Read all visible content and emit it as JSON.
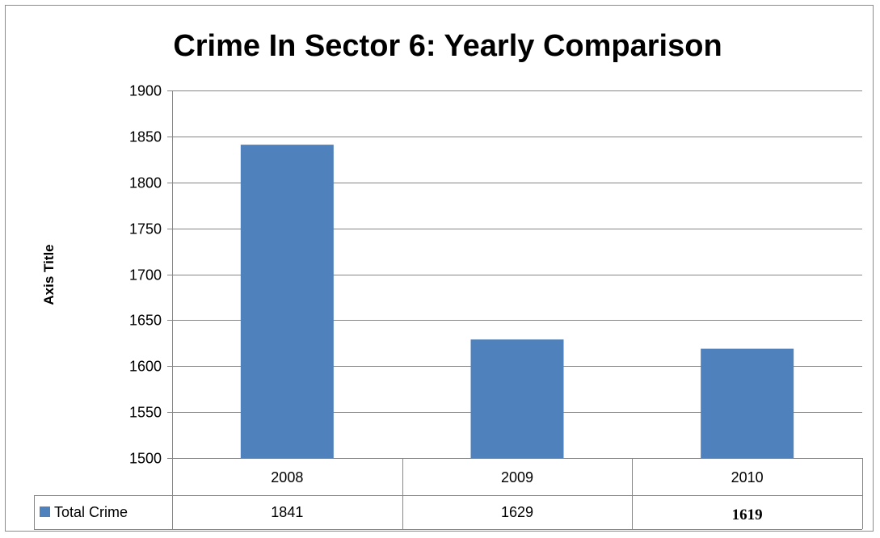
{
  "chart_data": {
    "type": "bar",
    "title": "Crime In Sector 6: Yearly Comparison",
    "ylabel": "Axis Title",
    "xlabel": "",
    "categories": [
      "2008",
      "2009",
      "2010"
    ],
    "series": [
      {
        "name": "Total Crime",
        "values": [
          1841,
          1629,
          1619
        ],
        "color": "#4f81bd"
      }
    ],
    "ylim": [
      1500,
      1900
    ],
    "yticks": [
      1500,
      1550,
      1600,
      1650,
      1700,
      1750,
      1800,
      1850,
      1900
    ],
    "ytick_labels": [
      "1500",
      "1550",
      "1600",
      "1650",
      "1700",
      "1750",
      "1800",
      "1850",
      "1900"
    ],
    "grid": true,
    "legend": "data-table-left",
    "data_table": {
      "series_label": "Total Crime",
      "cells": [
        "1841",
        "1629",
        "1619"
      ]
    },
    "colors": {
      "bar": "#4f81bd",
      "grid": "#868686",
      "axis": "#868686"
    }
  }
}
